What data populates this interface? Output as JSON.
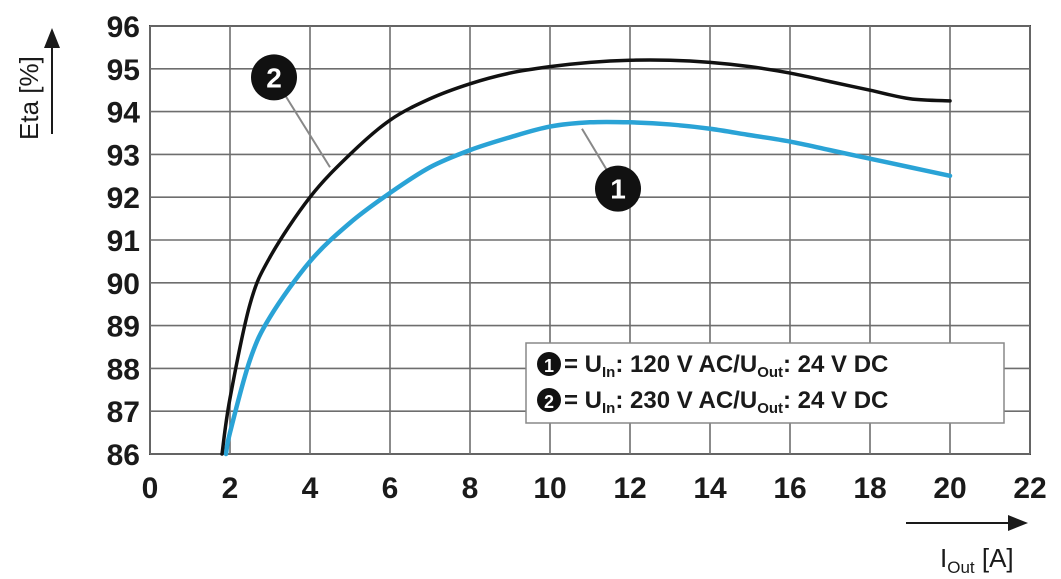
{
  "chart_data": {
    "type": "line",
    "xlabel": "I",
    "xlabel_sub": "Out",
    "xlabel_unit": " [A]",
    "ylabel": "Eta [%]",
    "xlim": [
      0,
      22
    ],
    "ylim": [
      86,
      96
    ],
    "xticks": [
      "0",
      "2",
      "4",
      "6",
      "8",
      "10",
      "12",
      "14",
      "16",
      "18",
      "20",
      "22"
    ],
    "yticks": [
      "86",
      "87",
      "88",
      "89",
      "90",
      "91",
      "92",
      "93",
      "94",
      "95",
      "96"
    ],
    "grid": true,
    "legend_position": "bottom-right",
    "series": [
      {
        "id": "1",
        "color": "#2aa3d6",
        "x": [
          1.9,
          2.0,
          2.5,
          3.0,
          4.0,
          5.0,
          6.0,
          7.0,
          8.0,
          9.0,
          10.0,
          11.0,
          12.0,
          13.0,
          14.0,
          15.0,
          16.0,
          17.0,
          18.0,
          19.0,
          20.0
        ],
        "y": [
          86.0,
          86.5,
          88.2,
          89.2,
          90.5,
          91.4,
          92.1,
          92.7,
          93.1,
          93.4,
          93.65,
          93.75,
          93.75,
          93.7,
          93.6,
          93.45,
          93.3,
          93.1,
          92.9,
          92.7,
          92.5
        ]
      },
      {
        "id": "2",
        "color": "#111111",
        "x": [
          1.8,
          2.0,
          2.5,
          3.0,
          4.0,
          5.0,
          6.0,
          7.0,
          8.0,
          9.0,
          10.0,
          11.0,
          12.0,
          13.0,
          14.0,
          15.0,
          16.0,
          17.0,
          18.0,
          19.0,
          20.0
        ],
        "y": [
          86.0,
          87.3,
          89.5,
          90.6,
          92.0,
          93.0,
          93.8,
          94.3,
          94.65,
          94.9,
          95.05,
          95.15,
          95.2,
          95.2,
          95.15,
          95.05,
          94.9,
          94.7,
          94.5,
          94.3,
          94.25
        ]
      }
    ],
    "callouts": [
      {
        "label": "2",
        "series": "2",
        "badge_x": 3.1,
        "badge_y": 94.8,
        "target_x": 4.5,
        "target_y": 92.7
      },
      {
        "label": "1",
        "series": "1",
        "badge_x": 11.7,
        "badge_y": 92.2,
        "target_x": 10.8,
        "target_y": 93.6
      }
    ],
    "legend": [
      {
        "badge": "1",
        "text_a": " = U",
        "sub_a": "In",
        "text_b": ": 120 V AC/U",
        "sub_b": "Out",
        "text_c": ": 24 V DC"
      },
      {
        "badge": "2",
        "text_a": " = U",
        "sub_a": "In",
        "text_b": ": 230 V AC/U",
        "sub_b": "Out",
        "text_c": ": 24 V DC"
      }
    ]
  }
}
